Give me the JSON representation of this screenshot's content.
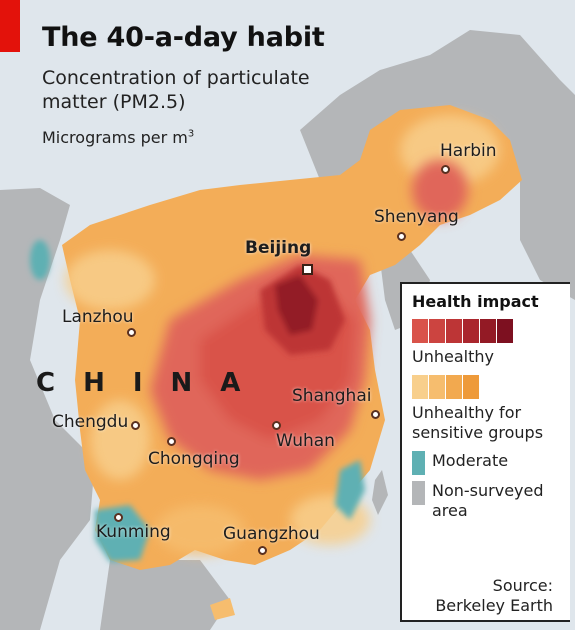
{
  "header": {
    "title": "The 40-a-day habit",
    "subtitle": "Concentration of particulate matter (PM2.5)",
    "units": "Micrograms per m",
    "units_sup": "3"
  },
  "map": {
    "country_label": "CHINA",
    "cities": [
      {
        "id": "harbin",
        "name": "Harbin"
      },
      {
        "id": "shenyang",
        "name": "Shenyang"
      },
      {
        "id": "beijing",
        "name": "Beijing",
        "capital": true
      },
      {
        "id": "lanzhou",
        "name": "Lanzhou"
      },
      {
        "id": "shanghai",
        "name": "Shanghai"
      },
      {
        "id": "chengdu",
        "name": "Chengdu"
      },
      {
        "id": "wuhan",
        "name": "Wuhan"
      },
      {
        "id": "chongqing",
        "name": "Chongqing"
      },
      {
        "id": "kunming",
        "name": "Kunming"
      },
      {
        "id": "guangzhou",
        "name": "Guangzhou"
      }
    ]
  },
  "legend": {
    "title": "Health impact",
    "categories": [
      {
        "label": "Unhealthy",
        "colors": [
          "#d9534a",
          "#cc4440",
          "#bd3536",
          "#aa262d",
          "#931a25",
          "#7d1020"
        ]
      },
      {
        "label": "Unhealthy for sensitive groups",
        "colors": [
          "#f8cf8c",
          "#f6bd6e",
          "#f2a94f",
          "#ee9a3a"
        ]
      },
      {
        "label": "Moderate",
        "color": "#5fb0b3"
      },
      {
        "label": "Non-surveyed area",
        "color": "#b4b6b8"
      }
    ],
    "source_line1": "Source:",
    "source_line2": "Berkeley Earth"
  },
  "colors": {
    "sea": "#dfe6ec",
    "land_outside": "#b4b6b8",
    "accent": "#e3120b"
  }
}
